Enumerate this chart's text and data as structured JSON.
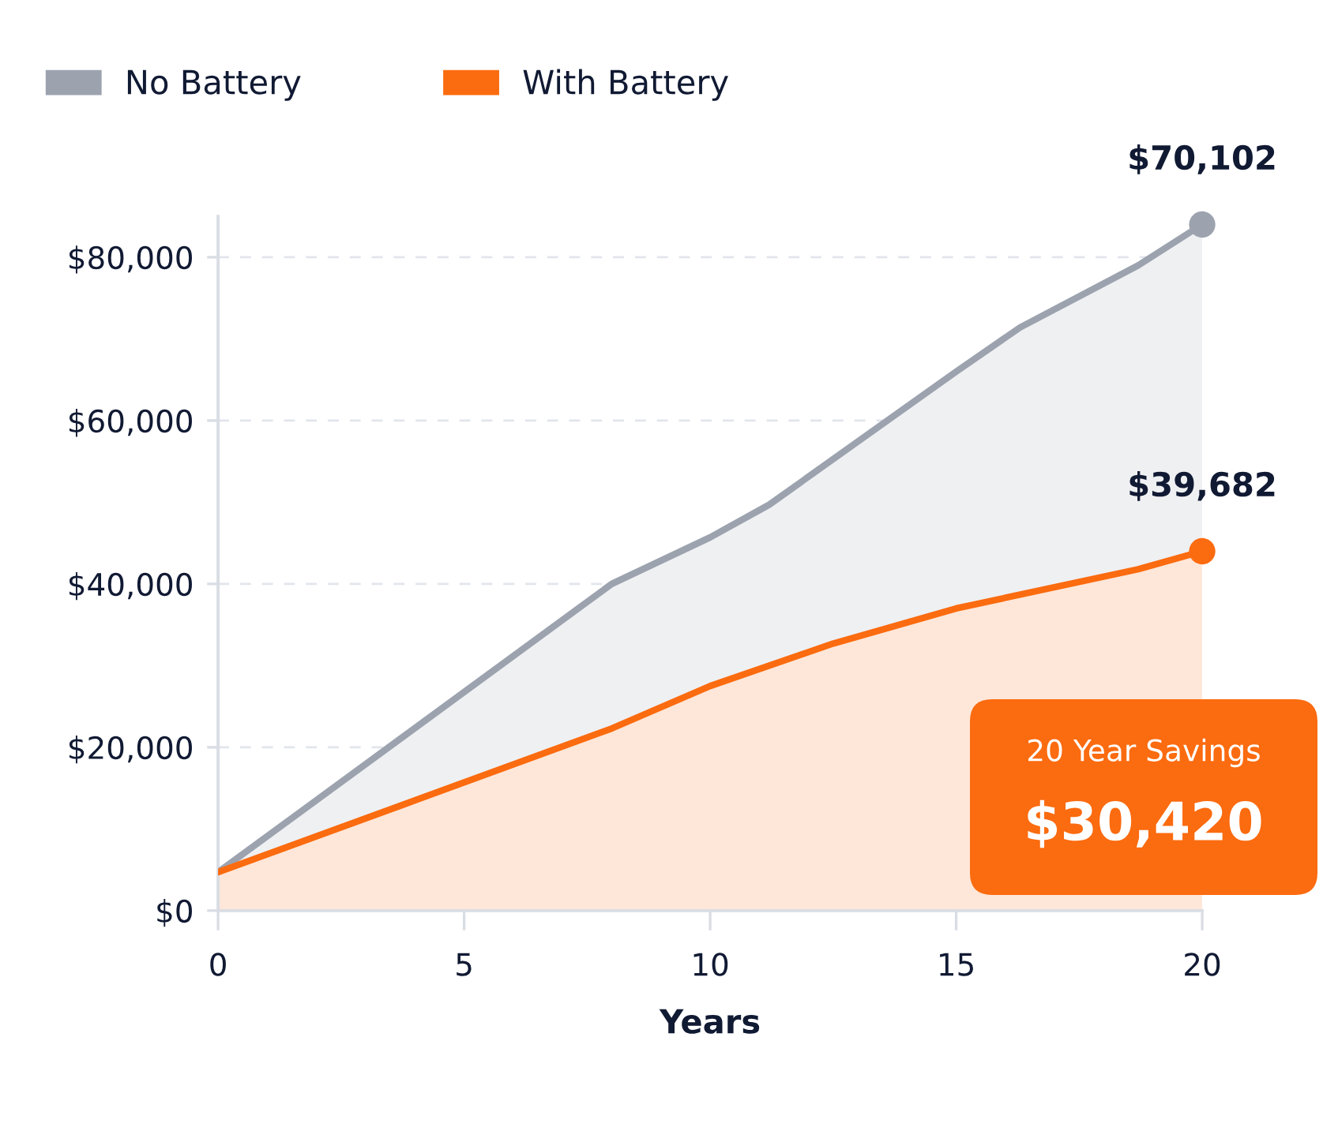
{
  "chart_data": {
    "type": "area",
    "xlabel": "Years",
    "series": [
      {
        "name": "No Battery",
        "color": "#9ca3af",
        "x": [
          0,
          8,
          10,
          11.2,
          15,
          16.3,
          18.7,
          20
        ],
        "values": [
          4700,
          40000,
          45700,
          49700,
          66000,
          71400,
          79000,
          84000
        ]
      },
      {
        "name": "With Battery",
        "color": "#fb6b0f",
        "x": [
          0,
          8,
          10,
          12.5,
          15,
          18.7,
          20
        ],
        "values": [
          4700,
          22300,
          27500,
          32700,
          37000,
          41800,
          44000
        ]
      }
    ],
    "xlim": [
      0,
      20
    ],
    "xticks": [
      0,
      5,
      10,
      15,
      20
    ],
    "ylim": [
      0,
      85000
    ],
    "yticks": [
      {
        "value": 0,
        "label": "$0"
      },
      {
        "value": 20000,
        "label": "$20,000"
      },
      {
        "value": 40000,
        "label": "$40,000"
      },
      {
        "value": 60000,
        "label": "$60,000"
      },
      {
        "value": 80000,
        "label": "$80,000"
      }
    ],
    "grid": "y",
    "legend": "top left",
    "line_style": "solid",
    "annotations": [
      {
        "text": "$70,102",
        "x": 20,
        "y": 84000
      },
      {
        "text": "$39,682",
        "x": 20,
        "y": 44000
      },
      "20 Year Savings",
      "$30,420"
    ]
  }
}
